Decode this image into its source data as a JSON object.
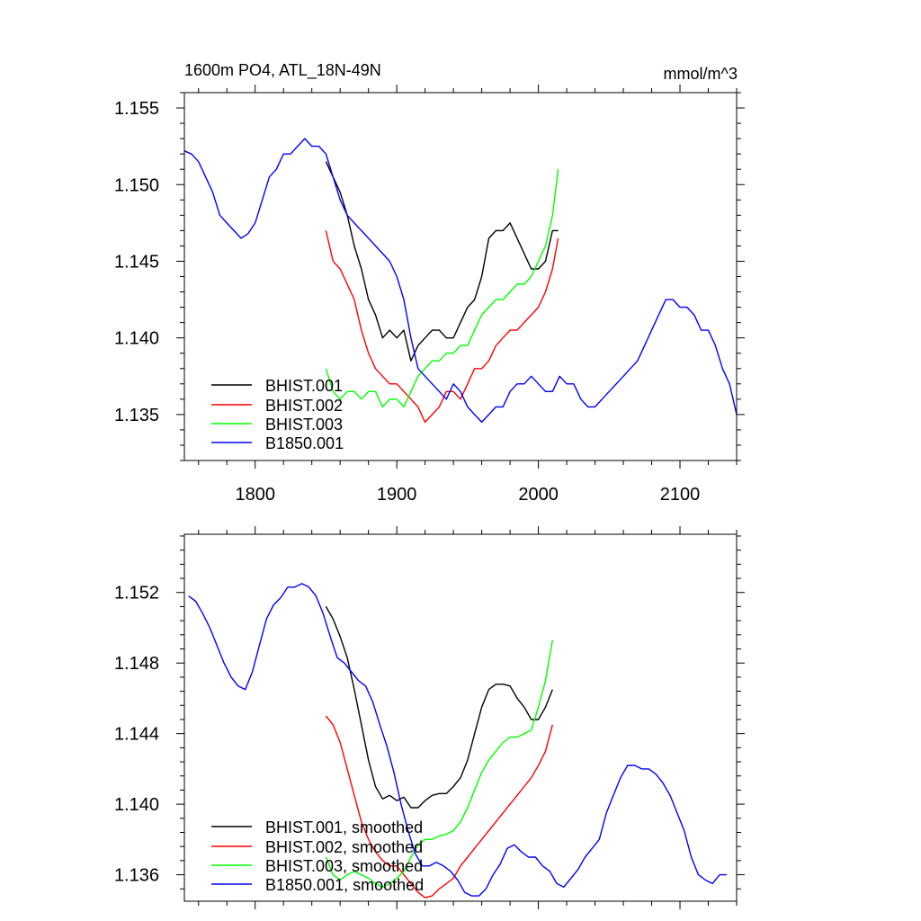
{
  "chart_data": [
    {
      "type": "line",
      "title": "1600m PO4, ATL_18N-49N",
      "units": "mmol/m^3",
      "xlim": [
        1750,
        2140
      ],
      "ylim": [
        1.132,
        1.156
      ],
      "xticks": [
        1800,
        1900,
        2000,
        2100
      ],
      "xtick_labels": [
        "1800",
        "1900",
        "2000",
        "2100"
      ],
      "yticks": [
        1.135,
        1.14,
        1.145,
        1.15,
        1.155
      ],
      "ytick_labels": [
        "1.135",
        "1.140",
        "1.145",
        "1.150",
        "1.155"
      ],
      "grid": false,
      "legend_position": "bottom-left",
      "series": [
        {
          "name": "BHIST.001",
          "color": "#000000",
          "x": [
            1850,
            1855,
            1860,
            1865,
            1870,
            1875,
            1880,
            1885,
            1890,
            1895,
            1900,
            1905,
            1910,
            1915,
            1920,
            1925,
            1930,
            1935,
            1940,
            1945,
            1950,
            1955,
            1960,
            1965,
            1970,
            1975,
            1980,
            1985,
            1990,
            1995,
            2000,
            2005,
            2010,
            2014
          ],
          "y": [
            1.1515,
            1.1505,
            1.1495,
            1.148,
            1.146,
            1.1445,
            1.1425,
            1.1415,
            1.14,
            1.1405,
            1.14,
            1.1405,
            1.1385,
            1.1395,
            1.14,
            1.1405,
            1.1405,
            1.14,
            1.14,
            1.141,
            1.142,
            1.1425,
            1.144,
            1.1465,
            1.147,
            1.147,
            1.1475,
            1.1465,
            1.1455,
            1.1445,
            1.1445,
            1.145,
            1.147,
            1.147
          ]
        },
        {
          "name": "BHIST.002",
          "color": "#ff0000",
          "x": [
            1850,
            1855,
            1860,
            1865,
            1870,
            1875,
            1880,
            1885,
            1890,
            1895,
            1900,
            1905,
            1910,
            1915,
            1920,
            1925,
            1930,
            1935,
            1940,
            1945,
            1950,
            1955,
            1960,
            1965,
            1970,
            1975,
            1980,
            1985,
            1990,
            1995,
            2000,
            2005,
            2010,
            2014
          ],
          "y": [
            1.147,
            1.145,
            1.1445,
            1.1435,
            1.1425,
            1.1405,
            1.139,
            1.138,
            1.1375,
            1.137,
            1.137,
            1.1365,
            1.136,
            1.1355,
            1.1345,
            1.135,
            1.1355,
            1.1365,
            1.1365,
            1.136,
            1.137,
            1.138,
            1.138,
            1.1385,
            1.1395,
            1.14,
            1.1405,
            1.1405,
            1.141,
            1.1415,
            1.142,
            1.143,
            1.1445,
            1.1465
          ]
        },
        {
          "name": "BHIST.003",
          "color": "#00ff00",
          "x": [
            1850,
            1855,
            1860,
            1865,
            1870,
            1875,
            1880,
            1885,
            1890,
            1895,
            1900,
            1905,
            1910,
            1915,
            1920,
            1925,
            1930,
            1935,
            1940,
            1945,
            1950,
            1955,
            1960,
            1965,
            1970,
            1975,
            1980,
            1985,
            1990,
            1995,
            2000,
            2005,
            2010,
            2014
          ],
          "y": [
            1.138,
            1.1365,
            1.136,
            1.1365,
            1.1365,
            1.136,
            1.1365,
            1.1365,
            1.1355,
            1.136,
            1.136,
            1.1355,
            1.1365,
            1.1375,
            1.138,
            1.1385,
            1.1385,
            1.139,
            1.139,
            1.1395,
            1.1395,
            1.1405,
            1.1415,
            1.142,
            1.1425,
            1.1425,
            1.143,
            1.1435,
            1.1435,
            1.144,
            1.145,
            1.146,
            1.148,
            1.151
          ]
        },
        {
          "name": "B1850.001",
          "color": "#0000ff",
          "x": [
            1750,
            1755,
            1760,
            1765,
            1770,
            1775,
            1780,
            1785,
            1790,
            1795,
            1800,
            1805,
            1810,
            1815,
            1820,
            1825,
            1830,
            1835,
            1840,
            1845,
            1850,
            1855,
            1860,
            1865,
            1870,
            1875,
            1880,
            1885,
            1890,
            1895,
            1900,
            1905,
            1910,
            1915,
            1920,
            1925,
            1930,
            1935,
            1940,
            1945,
            1950,
            1955,
            1960,
            1965,
            1970,
            1975,
            1980,
            1985,
            1990,
            1995,
            2000,
            2005,
            2010,
            2015,
            2020,
            2025,
            2030,
            2035,
            2040,
            2045,
            2050,
            2055,
            2060,
            2065,
            2070,
            2075,
            2080,
            2085,
            2090,
            2095,
            2100,
            2105,
            2110,
            2115,
            2120,
            2125,
            2130,
            2135,
            2140
          ],
          "y": [
            1.1522,
            1.152,
            1.1515,
            1.1505,
            1.1495,
            1.148,
            1.1475,
            1.147,
            1.1465,
            1.1468,
            1.1475,
            1.149,
            1.1505,
            1.151,
            1.152,
            1.152,
            1.1525,
            1.153,
            1.1525,
            1.1525,
            1.152,
            1.1505,
            1.149,
            1.148,
            1.1475,
            1.147,
            1.1465,
            1.146,
            1.1455,
            1.145,
            1.144,
            1.1425,
            1.14,
            1.138,
            1.1375,
            1.137,
            1.1365,
            1.136,
            1.137,
            1.1365,
            1.1355,
            1.135,
            1.1345,
            1.135,
            1.1355,
            1.1355,
            1.1365,
            1.137,
            1.137,
            1.1375,
            1.137,
            1.1365,
            1.1365,
            1.1375,
            1.137,
            1.137,
            1.136,
            1.1355,
            1.1355,
            1.136,
            1.1365,
            1.137,
            1.1375,
            1.138,
            1.1385,
            1.1395,
            1.1405,
            1.1415,
            1.1425,
            1.1425,
            1.142,
            1.142,
            1.1415,
            1.1405,
            1.1405,
            1.1395,
            1.138,
            1.137,
            1.135
          ]
        }
      ]
    },
    {
      "type": "line",
      "title": "",
      "xlim": [
        1750,
        2140
      ],
      "ylim": [
        1.1345,
        1.1553
      ],
      "xticks": [
        1800,
        1900,
        2000,
        2100
      ],
      "yticks": [
        1.136,
        1.14,
        1.144,
        1.148,
        1.152
      ],
      "ytick_labels": [
        "1.136",
        "1.140",
        "1.144",
        "1.148",
        "1.152"
      ],
      "grid": false,
      "legend_position": "bottom-left",
      "series": [
        {
          "name": "BHIST.001, smoothed",
          "color": "#000000",
          "x": [
            1850,
            1855,
            1860,
            1865,
            1870,
            1875,
            1880,
            1885,
            1890,
            1895,
            1900,
            1905,
            1910,
            1915,
            1920,
            1925,
            1930,
            1935,
            1940,
            1945,
            1950,
            1955,
            1960,
            1965,
            1970,
            1975,
            1980,
            1985,
            1990,
            1995,
            2000,
            2005,
            2010
          ],
          "y": [
            1.1512,
            1.1505,
            1.1495,
            1.1483,
            1.1465,
            1.1445,
            1.1425,
            1.141,
            1.1403,
            1.1405,
            1.1402,
            1.1404,
            1.1398,
            1.1398,
            1.1402,
            1.1405,
            1.1406,
            1.1406,
            1.141,
            1.1415,
            1.1425,
            1.144,
            1.1455,
            1.1465,
            1.1468,
            1.1468,
            1.1467,
            1.146,
            1.1455,
            1.1448,
            1.1448,
            1.1455,
            1.1465
          ]
        },
        {
          "name": "BHIST.002, smoothed",
          "color": "#ff0000",
          "x": [
            1850,
            1855,
            1860,
            1865,
            1870,
            1875,
            1880,
            1885,
            1890,
            1895,
            1900,
            1905,
            1910,
            1915,
            1920,
            1925,
            1930,
            1935,
            1940,
            1945,
            1950,
            1955,
            1960,
            1965,
            1970,
            1975,
            1980,
            1985,
            1990,
            1995,
            2000,
            2005,
            2010
          ],
          "y": [
            1.145,
            1.1445,
            1.1435,
            1.142,
            1.1405,
            1.139,
            1.138,
            1.1373,
            1.1368,
            1.1365,
            1.1365,
            1.136,
            1.1355,
            1.135,
            1.1347,
            1.1348,
            1.1352,
            1.1355,
            1.1358,
            1.1365,
            1.137,
            1.1375,
            1.138,
            1.1385,
            1.139,
            1.1395,
            1.14,
            1.1405,
            1.141,
            1.1415,
            1.1422,
            1.143,
            1.1445
          ]
        },
        {
          "name": "BHIST.003, smoothed",
          "color": "#00ff00",
          "x": [
            1850,
            1855,
            1860,
            1865,
            1870,
            1875,
            1880,
            1885,
            1890,
            1895,
            1900,
            1905,
            1910,
            1915,
            1920,
            1925,
            1930,
            1935,
            1940,
            1945,
            1950,
            1955,
            1960,
            1965,
            1970,
            1975,
            1980,
            1985,
            1990,
            1995,
            2000,
            2005,
            2010
          ],
          "y": [
            1.137,
            1.136,
            1.1357,
            1.136,
            1.1362,
            1.136,
            1.1358,
            1.1355,
            1.1353,
            1.1355,
            1.1358,
            1.1362,
            1.137,
            1.1377,
            1.138,
            1.138,
            1.1382,
            1.1383,
            1.1385,
            1.139,
            1.1398,
            1.1408,
            1.1418,
            1.1425,
            1.143,
            1.1435,
            1.1438,
            1.1438,
            1.144,
            1.1442,
            1.1455,
            1.147,
            1.1493
          ]
        },
        {
          "name": "B1850.001, smoothed",
          "color": "#0000ff",
          "x": [
            1753,
            1758,
            1763,
            1768,
            1773,
            1778,
            1783,
            1788,
            1793,
            1798,
            1803,
            1808,
            1813,
            1818,
            1823,
            1828,
            1833,
            1838,
            1843,
            1848,
            1853,
            1858,
            1863,
            1868,
            1873,
            1878,
            1883,
            1888,
            1893,
            1898,
            1903,
            1908,
            1913,
            1918,
            1923,
            1928,
            1933,
            1938,
            1943,
            1948,
            1953,
            1958,
            1963,
            1968,
            1973,
            1978,
            1983,
            1988,
            1993,
            1998,
            2003,
            2008,
            2013,
            2018,
            2023,
            2028,
            2033,
            2038,
            2043,
            2048,
            2053,
            2058,
            2063,
            2068,
            2073,
            2078,
            2083,
            2088,
            2093,
            2098,
            2103,
            2108,
            2113,
            2118,
            2123,
            2128,
            2133
          ],
          "y": [
            1.1518,
            1.1515,
            1.1508,
            1.15,
            1.149,
            1.148,
            1.1472,
            1.1467,
            1.1465,
            1.1475,
            1.149,
            1.1505,
            1.1513,
            1.1517,
            1.1523,
            1.1523,
            1.1525,
            1.1523,
            1.1518,
            1.1508,
            1.1495,
            1.1483,
            1.148,
            1.1475,
            1.147,
            1.1467,
            1.1458,
            1.1445,
            1.1433,
            1.1418,
            1.14,
            1.1385,
            1.1372,
            1.1365,
            1.1365,
            1.1367,
            1.1365,
            1.1362,
            1.1357,
            1.135,
            1.1348,
            1.1348,
            1.1352,
            1.136,
            1.1366,
            1.1375,
            1.1377,
            1.1373,
            1.137,
            1.137,
            1.1365,
            1.1362,
            1.1355,
            1.1353,
            1.1358,
            1.1363,
            1.137,
            1.1375,
            1.138,
            1.1395,
            1.1405,
            1.1415,
            1.1422,
            1.1422,
            1.142,
            1.142,
            1.1417,
            1.1412,
            1.1405,
            1.1395,
            1.1385,
            1.137,
            1.136,
            1.1357,
            1.1355,
            1.136,
            1.136
          ]
        }
      ]
    }
  ]
}
